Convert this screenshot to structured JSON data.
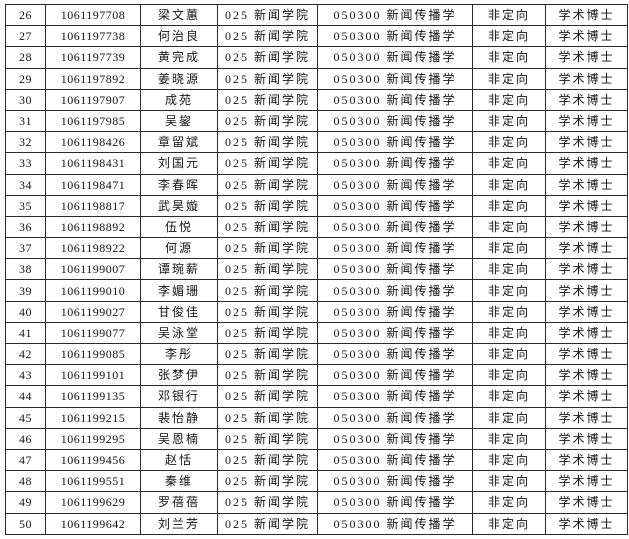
{
  "table": {
    "shared": {
      "college": "025 新闻学院",
      "major": "050300 新闻传播学",
      "study_mode": "非定向",
      "degree_type": "学术博士"
    },
    "rows": [
      {
        "no": "26",
        "id": "1061197708",
        "name": "梁文蕙",
        "college": "025 新闻学院",
        "major": "050300 新闻传播学",
        "study_mode": "非定向",
        "degree_type": "学术博士"
      },
      {
        "no": "27",
        "id": "1061197738",
        "name": "何治良",
        "college": "025 新闻学院",
        "major": "050300 新闻传播学",
        "study_mode": "非定向",
        "degree_type": "学术博士"
      },
      {
        "no": "28",
        "id": "1061197739",
        "name": "黄完成",
        "college": "025 新闻学院",
        "major": "050300 新闻传播学",
        "study_mode": "非定向",
        "degree_type": "学术博士"
      },
      {
        "no": "29",
        "id": "1061197892",
        "name": "姜晓源",
        "college": "025 新闻学院",
        "major": "050300 新闻传播学",
        "study_mode": "非定向",
        "degree_type": "学术博士"
      },
      {
        "no": "30",
        "id": "1061197907",
        "name": "成苑",
        "college": "025 新闻学院",
        "major": "050300 新闻传播学",
        "study_mode": "非定向",
        "degree_type": "学术博士"
      },
      {
        "no": "31",
        "id": "1061197985",
        "name": "吴鋆",
        "college": "025 新闻学院",
        "major": "050300 新闻传播学",
        "study_mode": "非定向",
        "degree_type": "学术博士"
      },
      {
        "no": "32",
        "id": "1061198426",
        "name": "章留斌",
        "college": "025 新闻学院",
        "major": "050300 新闻传播学",
        "study_mode": "非定向",
        "degree_type": "学术博士"
      },
      {
        "no": "33",
        "id": "1061198431",
        "name": "刘国元",
        "college": "025 新闻学院",
        "major": "050300 新闻传播学",
        "study_mode": "非定向",
        "degree_type": "学术博士"
      },
      {
        "no": "34",
        "id": "1061198471",
        "name": "李春晖",
        "college": "025 新闻学院",
        "major": "050300 新闻传播学",
        "study_mode": "非定向",
        "degree_type": "学术博士"
      },
      {
        "no": "35",
        "id": "1061198817",
        "name": "武昊嫙",
        "college": "025 新闻学院",
        "major": "050300 新闻传播学",
        "study_mode": "非定向",
        "degree_type": "学术博士"
      },
      {
        "no": "36",
        "id": "1061198892",
        "name": "伍悦",
        "college": "025 新闻学院",
        "major": "050300 新闻传播学",
        "study_mode": "非定向",
        "degree_type": "学术博士"
      },
      {
        "no": "37",
        "id": "1061198922",
        "name": "何源",
        "college": "025 新闻学院",
        "major": "050300 新闻传播学",
        "study_mode": "非定向",
        "degree_type": "学术博士"
      },
      {
        "no": "38",
        "id": "1061199007",
        "name": "谭琬薪",
        "college": "025 新闻学院",
        "major": "050300 新闻传播学",
        "study_mode": "非定向",
        "degree_type": "学术博士"
      },
      {
        "no": "39",
        "id": "1061199010",
        "name": "李媚珊",
        "college": "025 新闻学院",
        "major": "050300 新闻传播学",
        "study_mode": "非定向",
        "degree_type": "学术博士"
      },
      {
        "no": "40",
        "id": "1061199027",
        "name": "甘俊佳",
        "college": "025 新闻学院",
        "major": "050300 新闻传播学",
        "study_mode": "非定向",
        "degree_type": "学术博士"
      },
      {
        "no": "41",
        "id": "1061199077",
        "name": "吴泳堂",
        "college": "025 新闻学院",
        "major": "050300 新闻传播学",
        "study_mode": "非定向",
        "degree_type": "学术博士"
      },
      {
        "no": "42",
        "id": "1061199085",
        "name": "李彤",
        "college": "025 新闻学院",
        "major": "050300 新闻传播学",
        "study_mode": "非定向",
        "degree_type": "学术博士"
      },
      {
        "no": "43",
        "id": "1061199101",
        "name": "张梦伊",
        "college": "025 新闻学院",
        "major": "050300 新闻传播学",
        "study_mode": "非定向",
        "degree_type": "学术博士"
      },
      {
        "no": "44",
        "id": "1061199135",
        "name": "邓银行",
        "college": "025 新闻学院",
        "major": "050300 新闻传播学",
        "study_mode": "非定向",
        "degree_type": "学术博士"
      },
      {
        "no": "45",
        "id": "1061199215",
        "name": "裴怡静",
        "college": "025 新闻学院",
        "major": "050300 新闻传播学",
        "study_mode": "非定向",
        "degree_type": "学术博士"
      },
      {
        "no": "46",
        "id": "1061199295",
        "name": "吴恩楠",
        "college": "025 新闻学院",
        "major": "050300 新闻传播学",
        "study_mode": "非定向",
        "degree_type": "学术博士"
      },
      {
        "no": "47",
        "id": "1061199456",
        "name": "赵恬",
        "college": "025 新闻学院",
        "major": "050300 新闻传播学",
        "study_mode": "非定向",
        "degree_type": "学术博士"
      },
      {
        "no": "48",
        "id": "1061199551",
        "name": "秦维",
        "college": "025 新闻学院",
        "major": "050300 新闻传播学",
        "study_mode": "非定向",
        "degree_type": "学术博士"
      },
      {
        "no": "49",
        "id": "1061199629",
        "name": "罗蓓蓓",
        "college": "025 新闻学院",
        "major": "050300 新闻传播学",
        "study_mode": "非定向",
        "degree_type": "学术博士"
      },
      {
        "no": "50",
        "id": "1061199642",
        "name": "刘兰芳",
        "college": "025 新闻学院",
        "major": "050300 新闻传播学",
        "study_mode": "非定向",
        "degree_type": "学术博士"
      }
    ]
  }
}
